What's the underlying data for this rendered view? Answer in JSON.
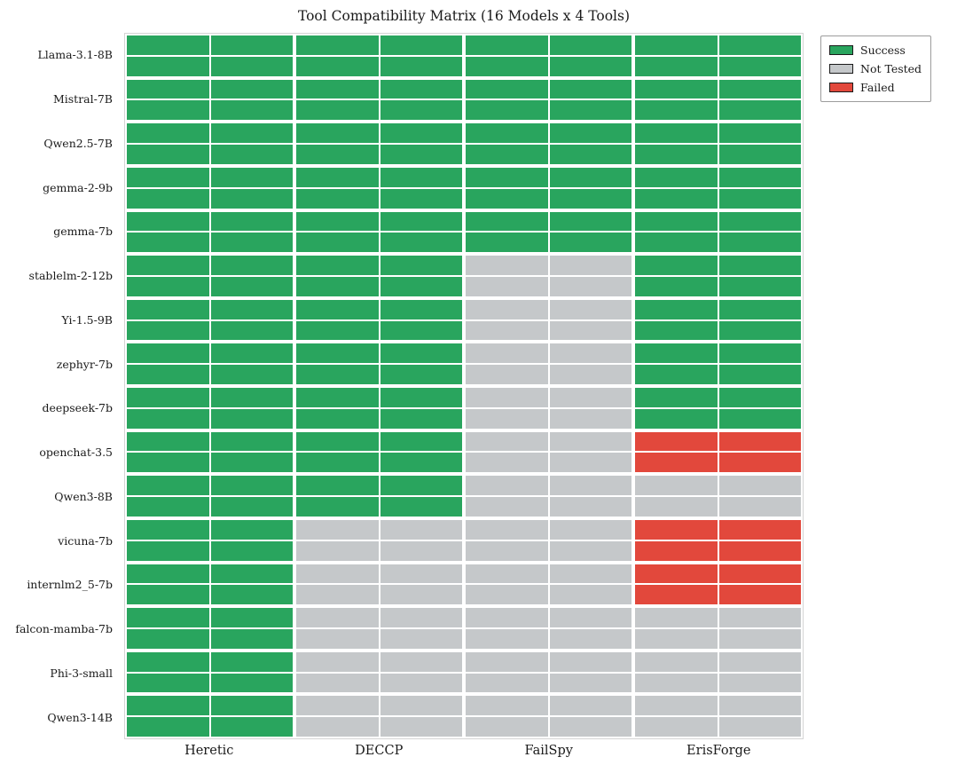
{
  "chart_data": {
    "type": "heatmap",
    "title": "Tool Compatibility Matrix (16 Models x 4 Tools)",
    "columns": [
      "Heretic",
      "DECCP",
      "FailSpy",
      "ErisForge"
    ],
    "rows": [
      "Llama-3.1-8B",
      "Mistral-7B",
      "Qwen2.5-7B",
      "gemma-2-9b",
      "gemma-7b",
      "stablelm-2-12b",
      "Yi-1.5-9B",
      "zephyr-7b",
      "deepseek-7b",
      "openchat-3.5",
      "Qwen3-8B",
      "vicuna-7b",
      "internlm2_5-7b",
      "falcon-mamba-7b",
      "Phi-3-small",
      "Qwen3-14B"
    ],
    "values": [
      [
        "success",
        "success",
        "success",
        "success"
      ],
      [
        "success",
        "success",
        "success",
        "success"
      ],
      [
        "success",
        "success",
        "success",
        "success"
      ],
      [
        "success",
        "success",
        "success",
        "success"
      ],
      [
        "success",
        "success",
        "success",
        "success"
      ],
      [
        "success",
        "success",
        "not_tested",
        "success"
      ],
      [
        "success",
        "success",
        "not_tested",
        "success"
      ],
      [
        "success",
        "success",
        "not_tested",
        "success"
      ],
      [
        "success",
        "success",
        "not_tested",
        "success"
      ],
      [
        "success",
        "success",
        "not_tested",
        "failed"
      ],
      [
        "success",
        "success",
        "not_tested",
        "not_tested"
      ],
      [
        "success",
        "not_tested",
        "not_tested",
        "failed"
      ],
      [
        "success",
        "not_tested",
        "not_tested",
        "failed"
      ],
      [
        "success",
        "not_tested",
        "not_tested",
        "not_tested"
      ],
      [
        "success",
        "not_tested",
        "not_tested",
        "not_tested"
      ],
      [
        "success",
        "not_tested",
        "not_tested",
        "not_tested"
      ]
    ],
    "status_colors": {
      "success": "#29a55e",
      "not_tested": "#c5c8ca",
      "failed": "#e2483c"
    },
    "legend": [
      {
        "label": "Success",
        "status": "success"
      },
      {
        "label": "Not Tested",
        "status": "not_tested"
      },
      {
        "label": "Failed",
        "status": "failed"
      }
    ],
    "legend_position": "upper-right-outside",
    "grid": "white cell separators"
  }
}
